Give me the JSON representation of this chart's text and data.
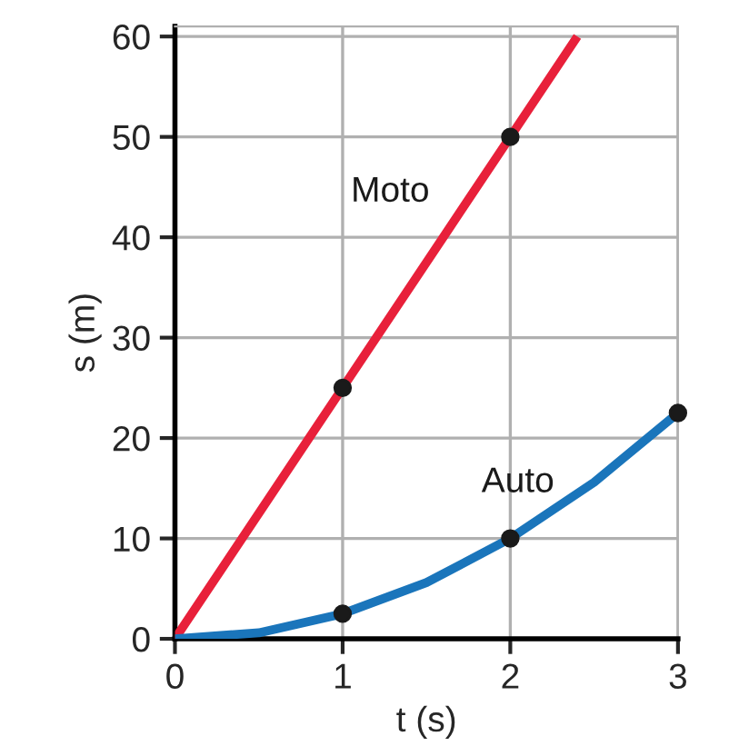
{
  "chart_data": {
    "type": "line",
    "xlabel": "t (s)",
    "ylabel": "s (m)",
    "series": [
      {
        "name": "Moto",
        "color": "#e8203a",
        "x": [
          0,
          1,
          2,
          2.4
        ],
        "values": [
          0,
          25,
          50,
          60
        ]
      },
      {
        "name": "Auto",
        "color": "#1a75bb",
        "x": [
          0,
          0.5,
          1,
          1.5,
          2,
          2.5,
          3
        ],
        "values": [
          0,
          0.6,
          2.5,
          5.6,
          10,
          15.6,
          22.5
        ]
      },
      {
        "type": "scatter",
        "marker": "circle",
        "color": "#1a1a1a",
        "x": [
          1,
          2
        ],
        "values": [
          25,
          50
        ]
      },
      {
        "type": "scatter",
        "marker": "circle",
        "color": "#1a1a1a",
        "x": [
          1,
          2,
          3
        ],
        "values": [
          2.5,
          10,
          22.5
        ]
      }
    ],
    "xlim": [
      0,
      3
    ],
    "ylim": [
      0,
      61
    ],
    "xticks": [
      0,
      1,
      2,
      3
    ],
    "yticks": [
      0,
      10,
      20,
      30,
      40,
      50,
      60
    ],
    "grid": true,
    "line_style": "solid"
  }
}
